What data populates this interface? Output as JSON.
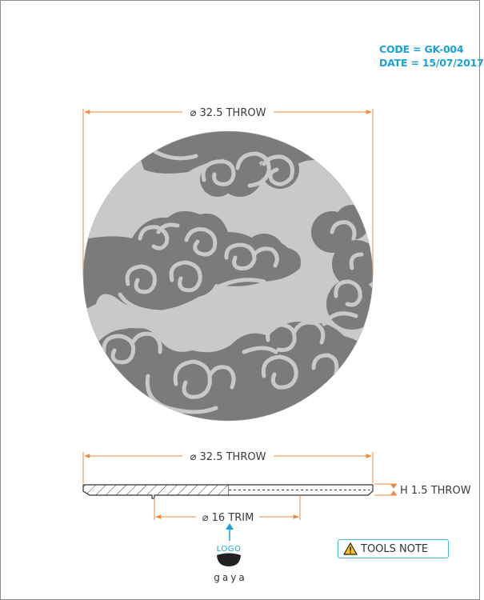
{
  "header": {
    "code": "CODE = GK-004",
    "date": "DATE = 15/07/2017"
  },
  "top_view": {
    "diameter_label": "⌀ 32.5 THROW"
  },
  "side_view": {
    "diameter_label": "⌀ 32.5 THROW",
    "height_label": "H 1.5 THROW",
    "trim_label": "⌀ 16 TRIM"
  },
  "logo": {
    "label": "LOGO",
    "brand": "gaya"
  },
  "tools_note": {
    "label": "TOOLS NOTE",
    "icon": "warning-icon"
  },
  "colors": {
    "dimension": "#f08a3a",
    "accent": "#1aa0db",
    "disc_light": "#c9c9c9",
    "disc_dark": "#7b7b7b"
  }
}
